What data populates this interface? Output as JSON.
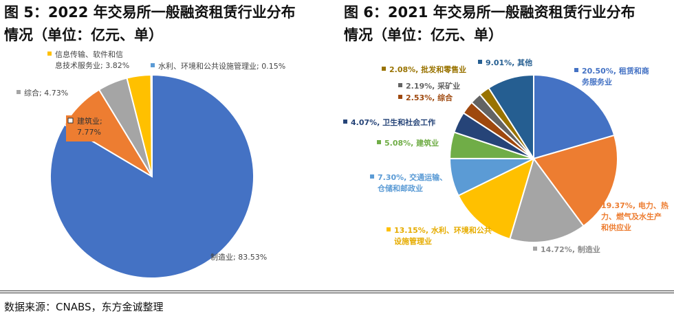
{
  "panels": [
    {
      "title_line1": "图 5：2022 年交易所一般融资租赁行业分布",
      "title_line2": "情况（单位：亿元、单）"
    },
    {
      "title_line1": "图 6：2021 年交易所一般融资租赁行业分布",
      "title_line2": "情况（单位：亿元、单）"
    }
  ],
  "chart_data": [
    {
      "type": "pie",
      "slices": [
        {
          "label": "制造业",
          "value": 83.53,
          "color": "#4472C4"
        },
        {
          "label": "建筑业",
          "value": 7.77,
          "color": "#ED7D31"
        },
        {
          "label": "综合",
          "value": 4.73,
          "color": "#A5A5A5"
        },
        {
          "label": "信息传输、软件和信息技术服务业",
          "value": 3.82,
          "color": "#FFC000"
        },
        {
          "label": "水利、环境和公共设施管理业",
          "value": 0.15,
          "color": "#5B9BD5"
        }
      ],
      "labels": [
        {
          "lines": [
            "制造业; 83.53%"
          ],
          "color": "#4472C4",
          "text_color": "#444444"
        },
        {
          "lines": [
            "建筑业;",
            "7.77%"
          ],
          "color": "#ED7D31",
          "text_color": "#333333",
          "inside": true
        },
        {
          "lines": [
            "综合; 4.73%"
          ],
          "color": "#A5A5A5",
          "text_color": "#444444"
        },
        {
          "lines": [
            "信息传输、软件和信",
            "息技术服务业; 3.82%"
          ],
          "color": "#FFC000",
          "text_color": "#444444"
        },
        {
          "lines": [
            "水利、环境和公共设施管理业; 0.15%"
          ],
          "color": "#5B9BD5",
          "text_color": "#444444"
        }
      ]
    },
    {
      "type": "pie",
      "slices": [
        {
          "label": "租赁和商务服务业",
          "value": 20.5,
          "color": "#4472C4"
        },
        {
          "label": "电力、热力、燃气及水生产和供应业",
          "value": 19.37,
          "color": "#ED7D31"
        },
        {
          "label": "制造业",
          "value": 14.72,
          "color": "#A5A5A5"
        },
        {
          "label": "水利、环境和公共设施管理业",
          "value": 13.15,
          "color": "#FFC000"
        },
        {
          "label": "交通运输、仓储和邮政业",
          "value": 7.3,
          "color": "#5B9BD5"
        },
        {
          "label": "建筑业",
          "value": 5.08,
          "color": "#70AD47"
        },
        {
          "label": "卫生和社会工作",
          "value": 4.07,
          "color": "#264478"
        },
        {
          "label": "综合",
          "value": 2.53,
          "color": "#9E480E"
        },
        {
          "label": "采矿业",
          "value": 2.19,
          "color": "#636363"
        },
        {
          "label": "批发和零售业",
          "value": 2.08,
          "color": "#997300"
        },
        {
          "label": "其他",
          "value": 9.01,
          "color": "#255E91"
        }
      ],
      "labels": [
        {
          "lines": [
            "20.50%, 租赁和商",
            "务服务业"
          ],
          "color": "#4472C4",
          "text_color": "#4472C4"
        },
        {
          "lines": [
            "19.37%, 电力、热",
            "力、燃气及水生产",
            "和供应业"
          ],
          "color": "#ED7D31",
          "text_color": "#ED7D31"
        },
        {
          "lines": [
            "14.72%, 制造业"
          ],
          "color": "#A5A5A5",
          "text_color": "#8C8C8C"
        },
        {
          "lines": [
            "13.15%, 水利、环境和公共",
            "设施管理业"
          ],
          "color": "#FFC000",
          "text_color": "#E6AC00"
        },
        {
          "lines": [
            "7.30%, 交通运输、",
            "仓储和邮政业"
          ],
          "color": "#5B9BD5",
          "text_color": "#5B9BD5"
        },
        {
          "lines": [
            "5.08%, 建筑业"
          ],
          "color": "#70AD47",
          "text_color": "#70AD47"
        },
        {
          "lines": [
            "4.07%, 卫生和社会工作"
          ],
          "color": "#264478",
          "text_color": "#264478"
        },
        {
          "lines": [
            "2.53%, 综合"
          ],
          "color": "#9E480E",
          "text_color": "#9E480E"
        },
        {
          "lines": [
            "2.19%, 采矿业"
          ],
          "color": "#636363",
          "text_color": "#636363"
        },
        {
          "lines": [
            "2.08%, 批发和零售业"
          ],
          "color": "#997300",
          "text_color": "#997300"
        },
        {
          "lines": [
            "9.01%, 其他"
          ],
          "color": "#255E91",
          "text_color": "#255E91"
        }
      ]
    }
  ],
  "source": "数据来源：CNABS，东方金诚整理"
}
